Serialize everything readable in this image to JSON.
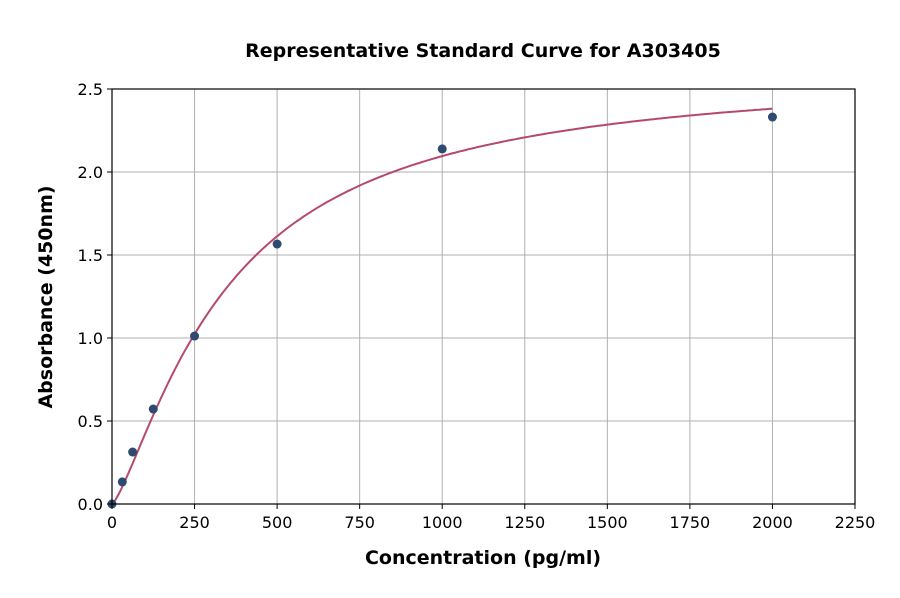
{
  "chart_data": {
    "type": "scatter",
    "title": "Representative Standard Curve for A303405",
    "xlabel": "Concentration (pg/ml)",
    "ylabel": "Absorbance (450nm)",
    "xlim": [
      0,
      2250
    ],
    "ylim": [
      0,
      2.5
    ],
    "xticks": [
      "0",
      "250",
      "500",
      "750",
      "1000",
      "1250",
      "1500",
      "1750",
      "2000",
      "2250"
    ],
    "yticks": [
      "0.0",
      "0.5",
      "1.0",
      "1.5",
      "2.0",
      "2.5"
    ],
    "grid": true,
    "points": {
      "x": [
        0,
        31.25,
        62.5,
        125,
        250,
        500,
        1000,
        2000
      ],
      "y": [
        0.0,
        0.133,
        0.313,
        0.572,
        1.012,
        1.566,
        2.139,
        2.331
      ]
    },
    "fit_curve": {
      "style": "smooth fitted curve",
      "x_range": [
        0,
        2000
      ]
    },
    "colors": {
      "points": "#2e4a6e",
      "curve": "#b5496c",
      "grid": "#b0b0b0"
    }
  }
}
